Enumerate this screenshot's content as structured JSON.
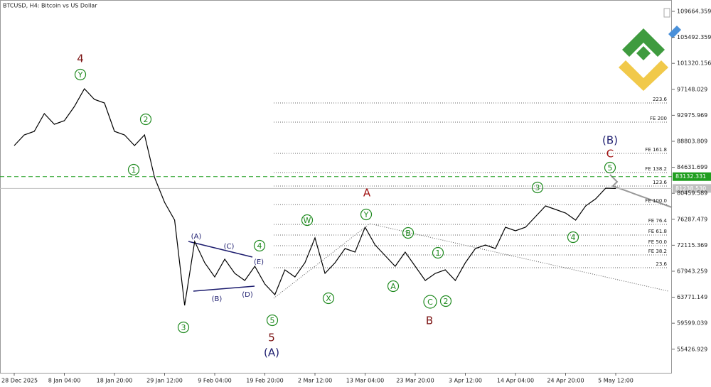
{
  "chart_data": {
    "type": "line",
    "title": "BTCUSD, H4:  Bitcoin vs US Dollar",
    "color": "#000000",
    "categories": [
      "28 Dec 2025",
      null,
      null,
      null,
      null,
      "8 Jan 04:00",
      null,
      null,
      null,
      null,
      "18 Jan 20:00",
      null,
      null,
      null,
      null,
      "29 Jan 12:00",
      null,
      null,
      null,
      null,
      "9 Feb 04:00",
      null,
      null,
      null,
      null,
      "19 Feb 20:00",
      null,
      null,
      null,
      null,
      "2 Mar 12:00",
      null,
      null,
      null,
      null,
      "13 Mar 04:00",
      null,
      null,
      null,
      null,
      "23 Mar 20:00",
      null,
      null,
      null,
      null,
      "3 Apr 12:00",
      null,
      null,
      null,
      null,
      "14 Apr 04:00",
      null,
      null,
      null,
      null,
      "24 Apr 20:00",
      null,
      null,
      null,
      null,
      "5 May 12:00"
    ],
    "values": [
      88118,
      89828,
      90398,
      93248,
      91538,
      92108,
      94388,
      97238,
      95528,
      94958,
      90398,
      89828,
      88118,
      89828,
      82988,
      78998,
      76148,
      62468,
      72728,
      69308,
      67028,
      69878,
      67598,
      66458,
      68738,
      65888,
      64178,
      68168,
      67028,
      69308,
      73298,
      67598,
      69308,
      71588,
      71018,
      75008,
      72158,
      70448,
      68738,
      71018,
      68738,
      66458,
      67598,
      68168,
      66458,
      69308,
      71588,
      72158,
      71588,
      75008,
      74438,
      75008,
      76718,
      78428,
      77858,
      77288,
      76148,
      78428,
      79568,
      81278,
      81238.53
    ],
    "ylim": [
      51638,
      111488
    ],
    "yticks": [
      109664.359,
      105492.359,
      101320.156,
      97148.029,
      92975.969,
      88803.809,
      84631.699,
      80459.589,
      76287.479,
      72115.369,
      67943.259,
      63771.149,
      59599.039,
      55426.929
    ],
    "price_lines": [
      {
        "value": 83132.331,
        "label": "83132.331",
        "color": "#1f9e1f"
      },
      {
        "value": 81238.53,
        "label": "81238.530",
        "color": "#c0c0c0"
      }
    ],
    "levels": [
      {
        "value": 94958,
        "label": "223.6"
      },
      {
        "value": 91880,
        "label": "FE 200"
      },
      {
        "value": 86864,
        "label": "FE 161.8"
      },
      {
        "value": 83786,
        "label": "FE 138.2"
      },
      {
        "value": 81620,
        "label": "123.6"
      },
      {
        "value": 78656,
        "label": "FE 100.0"
      },
      {
        "value": 75464,
        "label": "FE 76.4"
      },
      {
        "value": 73754,
        "label": "FE 61.8"
      },
      {
        "value": 72044,
        "label": "FE 50.0"
      },
      {
        "value": 70562,
        "label": "FE 38.2"
      },
      {
        "value": 68510,
        "label": "23.6"
      }
    ],
    "annotations": [
      {
        "text": "4",
        "color": "#7a1010"
      },
      {
        "text": "Y",
        "color": "#1f8a1f"
      },
      {
        "text": "2",
        "color": "#1f8a1f"
      },
      {
        "text": "1",
        "color": "#1f8a1f"
      },
      {
        "text": "3",
        "color": "#1f8a1f"
      },
      {
        "text": "(A)",
        "color": "#1c1c6e"
      },
      {
        "text": "(C)",
        "color": "#1c1c6e"
      },
      {
        "text": "4",
        "color": "#1f8a1f"
      },
      {
        "text": "(E)",
        "color": "#1c1c6e"
      },
      {
        "text": "(B)",
        "color": "#1c1c6e"
      },
      {
        "text": "(D)",
        "color": "#1c1c6e"
      },
      {
        "text": "5",
        "color": "#1f8a1f"
      },
      {
        "text": "5",
        "color": "#7a1010"
      },
      {
        "text": "(A)",
        "color": "#1c1c6e"
      },
      {
        "text": "W",
        "color": "#1f8a1f"
      },
      {
        "text": "X",
        "color": "#1f8a1f"
      },
      {
        "text": "A",
        "color": "#a01010"
      },
      {
        "text": "Y",
        "color": "#1f8a1f"
      },
      {
        "text": "B",
        "color": "#1f8a1f"
      },
      {
        "text": "1",
        "color": "#1f8a1f"
      },
      {
        "text": "A",
        "color": "#1f8a1f"
      },
      {
        "text": "C",
        "color": "#1f8a1f"
      },
      {
        "text": "2",
        "color": "#1f8a1f"
      },
      {
        "text": "B",
        "color": "#7a1010"
      },
      {
        "text": "3",
        "color": "#1f8a1f"
      },
      {
        "text": "4",
        "color": "#1f8a1f"
      },
      {
        "text": "(B)",
        "color": "#1c1c6e"
      },
      {
        "text": "C",
        "color": "#a01010"
      },
      {
        "text": "5",
        "color": "#1f8a1f"
      }
    ]
  }
}
